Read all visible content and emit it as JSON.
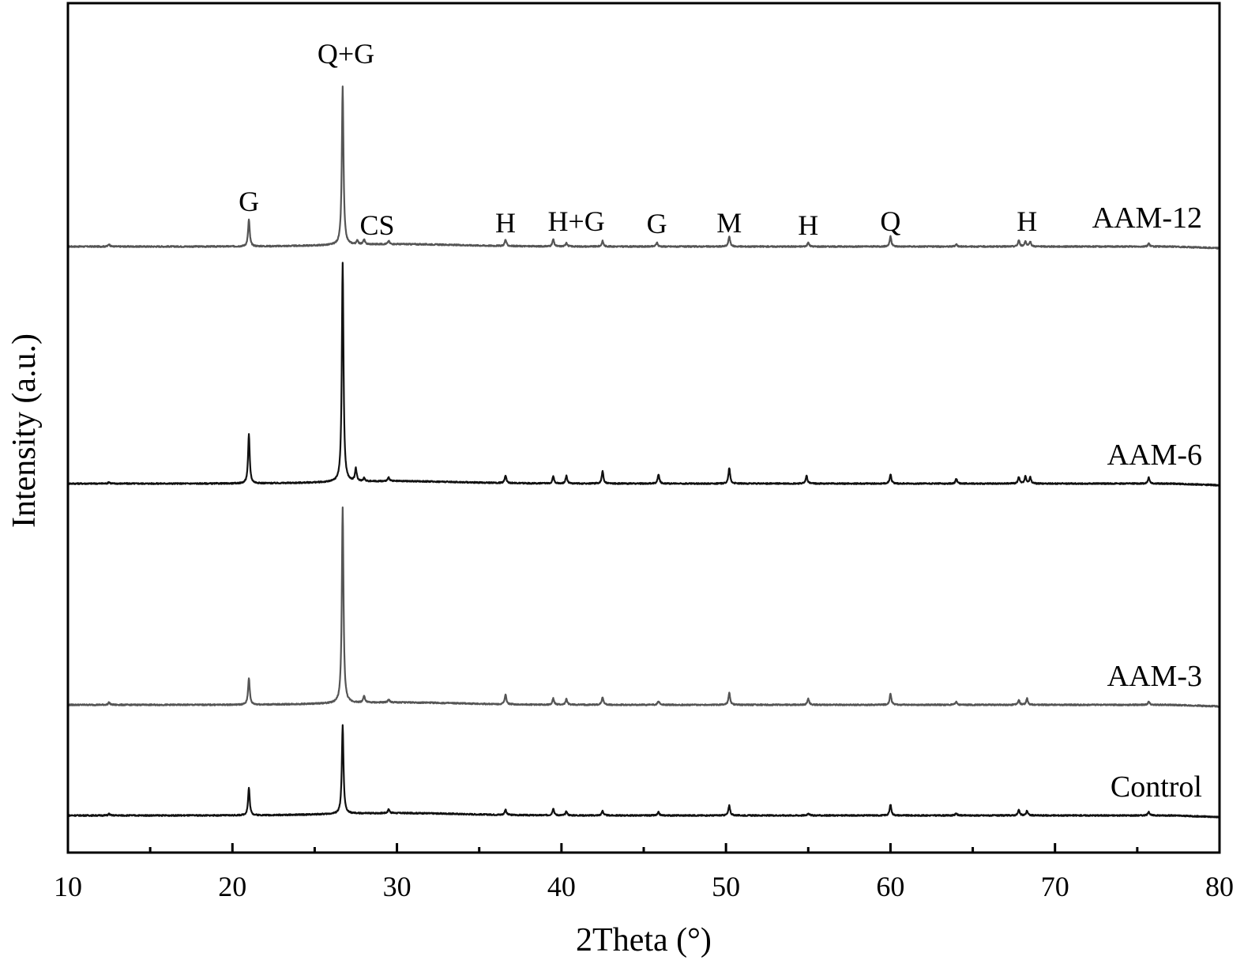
{
  "chart_data": {
    "type": "line",
    "xlabel": "2Theta (°)",
    "ylabel": "Intensity (a.u.)",
    "xlim": [
      10,
      80
    ],
    "x_ticks": [
      "10",
      "20",
      "30",
      "40",
      "50",
      "60",
      "70",
      "80"
    ],
    "x_tick_values": [
      10,
      20,
      30,
      40,
      50,
      60,
      70,
      80
    ],
    "x_minor_ticks": [
      15,
      25,
      35,
      45,
      55,
      65,
      75
    ],
    "y_axis": "arbitrary units, traces vertically offset, no tick labels",
    "grid": false,
    "legend": "none; series labels placed at right end of each trace",
    "series": [
      {
        "name": "AAM-12",
        "color": "#555555",
        "baseline": 300,
        "peaks": [
          [
            12.5,
            3
          ],
          [
            21.0,
            34
          ],
          [
            26.7,
            200
          ],
          [
            27.6,
            5
          ],
          [
            28.0,
            6
          ],
          [
            29.5,
            4
          ],
          [
            36.6,
            8
          ],
          [
            39.5,
            9
          ],
          [
            40.3,
            5
          ],
          [
            42.5,
            7
          ],
          [
            45.8,
            5
          ],
          [
            50.2,
            13
          ],
          [
            55.0,
            5
          ],
          [
            60.0,
            13
          ],
          [
            64.0,
            3
          ],
          [
            67.8,
            8
          ],
          [
            68.2,
            7
          ],
          [
            68.5,
            6
          ],
          [
            75.7,
            4
          ]
        ]
      },
      {
        "name": "AAM-6",
        "color": "#111111",
        "baseline": 0,
        "peaks": [
          [
            12.5,
            2
          ],
          [
            21.0,
            62
          ],
          [
            26.7,
            278
          ],
          [
            27.5,
            16
          ],
          [
            28.0,
            4
          ],
          [
            29.5,
            5
          ],
          [
            36.6,
            10
          ],
          [
            39.5,
            9
          ],
          [
            40.3,
            10
          ],
          [
            42.5,
            16
          ],
          [
            45.9,
            12
          ],
          [
            50.2,
            20
          ],
          [
            54.9,
            10
          ],
          [
            60.0,
            12
          ],
          [
            64.0,
            6
          ],
          [
            67.8,
            8
          ],
          [
            68.2,
            9
          ],
          [
            68.5,
            8
          ],
          [
            75.7,
            8
          ]
        ]
      },
      {
        "name": "AAM-3",
        "color": "#555555",
        "baseline": -280,
        "peaks": [
          [
            12.5,
            3
          ],
          [
            21.0,
            34
          ],
          [
            26.7,
            248
          ],
          [
            28.0,
            9
          ],
          [
            29.5,
            4
          ],
          [
            36.6,
            12
          ],
          [
            39.5,
            8
          ],
          [
            40.3,
            7
          ],
          [
            42.5,
            10
          ],
          [
            45.9,
            5
          ],
          [
            50.2,
            15
          ],
          [
            55.0,
            8
          ],
          [
            60.0,
            14
          ],
          [
            64.0,
            4
          ],
          [
            67.8,
            6
          ],
          [
            68.3,
            8
          ],
          [
            75.7,
            4
          ]
        ]
      },
      {
        "name": "Control",
        "color": "#111111",
        "baseline": -420,
        "peaks": [
          [
            12.5,
            2
          ],
          [
            21.0,
            35
          ],
          [
            26.7,
            112
          ],
          [
            29.5,
            5
          ],
          [
            36.6,
            7
          ],
          [
            39.5,
            9
          ],
          [
            40.3,
            5
          ],
          [
            42.5,
            6
          ],
          [
            45.9,
            4
          ],
          [
            50.2,
            13
          ],
          [
            55.0,
            3
          ],
          [
            60.0,
            14
          ],
          [
            64.0,
            3
          ],
          [
            67.8,
            7
          ],
          [
            68.3,
            6
          ],
          [
            75.7,
            5
          ]
        ]
      }
    ],
    "annotations": [
      {
        "text": "G",
        "x": 21.0,
        "y": 345
      },
      {
        "text": "Q+G",
        "x": 26.9,
        "y": 532
      },
      {
        "text": "CS",
        "x": 28.8,
        "y": 315
      },
      {
        "text": "H",
        "x": 36.6,
        "y": 318
      },
      {
        "text": "H+G",
        "x": 40.9,
        "y": 320
      },
      {
        "text": "G",
        "x": 45.8,
        "y": 317
      },
      {
        "text": "M",
        "x": 50.2,
        "y": 318
      },
      {
        "text": "H",
        "x": 55.0,
        "y": 315
      },
      {
        "text": "Q",
        "x": 60.0,
        "y": 320
      },
      {
        "text": "H",
        "x": 68.3,
        "y": 320
      }
    ]
  }
}
